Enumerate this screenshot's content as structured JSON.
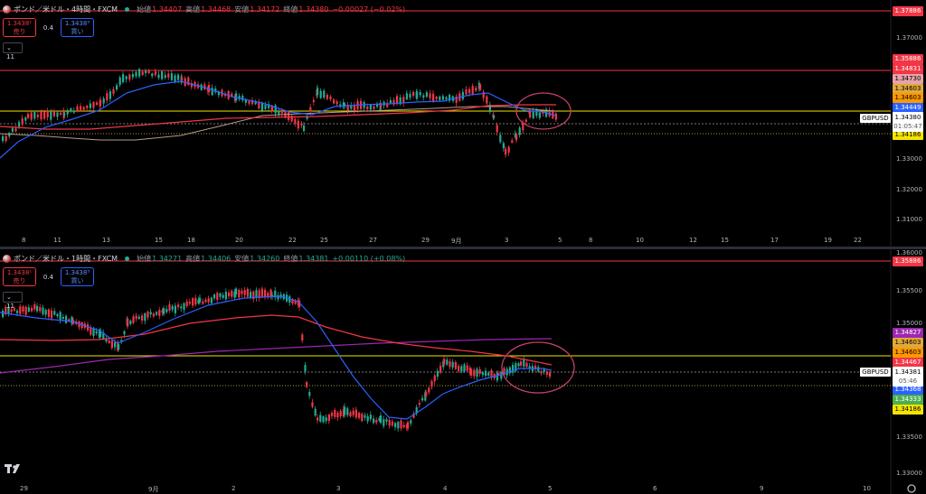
{
  "top_chart": {
    "legend": {
      "title": "ポンド／米ドル・4時間・FXCM",
      "open_label": "始値",
      "open": "1.34407",
      "high_label": "高値",
      "high": "1.34468",
      "low_label": "安値",
      "low": "1.34172",
      "close_label": "終値",
      "close": "1.34380",
      "change": "−0.00027 (−0.02%)"
    },
    "trade": {
      "sell_price": "1.3438¹",
      "sell_label": "売り",
      "spread": "0.4",
      "buy_price": "1.3438⁵",
      "buy_label": "買い"
    },
    "indicator_count": "11",
    "y_ticks": [
      "1.37000",
      "1.33000",
      "1.32000",
      "1.31000"
    ],
    "x_ticks": [
      "8",
      "11",
      "13",
      "15",
      "18",
      "20",
      "22",
      "25",
      "27",
      "29",
      "9月",
      "3",
      "5",
      "8",
      "10",
      "12",
      "15",
      "17",
      "19",
      "22"
    ],
    "price_tags": [
      {
        "value": "1.37886",
        "color": "#f23645"
      },
      {
        "value": "1.35886",
        "color": "#f23645"
      },
      {
        "value": "1.34831",
        "color": "#f23645"
      },
      {
        "value": "1.34730",
        "color": "#e8a3a8"
      },
      {
        "value": "1.34603",
        "color": "#e0a93a"
      },
      {
        "value": "1.34603",
        "color": "#ff9800"
      },
      {
        "value": "1.34449",
        "color": "#2962ff"
      },
      {
        "value": "1.34186",
        "color": "#f5e400"
      }
    ],
    "symbol": "GBPUSD",
    "last_price": "1.34380",
    "countdown": "01:05:47"
  },
  "bottom_chart": {
    "legend": {
      "title": "ポンド／米ドル・1時間・FXCM",
      "open_label": "始値",
      "open": "1.34271",
      "high_label": "高値",
      "high": "1.34406",
      "low_label": "安値",
      "low": "1.34260",
      "close_label": "終値",
      "close": "1.34381",
      "change": "+0.00110 (+0.08%)"
    },
    "trade": {
      "sell_price": "1.3438¹",
      "sell_label": "売り",
      "spread": "0.4",
      "buy_price": "1.3438⁵",
      "buy_label": "買い"
    },
    "indicator_count": "11",
    "y_ticks": [
      "1.36000",
      "1.35500",
      "1.35000",
      "1.33500",
      "1.33000"
    ],
    "x_ticks": [
      "29",
      "9月",
      "2",
      "3",
      "4",
      "5",
      "6",
      "9",
      "10"
    ],
    "price_tags": [
      {
        "value": "1.35886",
        "color": "#f23645"
      },
      {
        "value": "1.34827",
        "color": "#9c27b0"
      },
      {
        "value": "1.34603",
        "color": "#e0a93a"
      },
      {
        "value": "1.34603",
        "color": "#ff9800"
      },
      {
        "value": "1.34467",
        "color": "#f23645"
      },
      {
        "value": "1.34368",
        "color": "#2962ff"
      },
      {
        "value": "1.34333",
        "color": "#4caf50"
      },
      {
        "value": "1.34186",
        "color": "#f5e400"
      }
    ],
    "symbol": "GBPUSD",
    "last_price": "1.34381",
    "countdown": "05:46"
  },
  "colors": {
    "up": "#22ab94",
    "down": "#f23645",
    "ma_fast": "#2962ff",
    "ma_slow": "#f23645",
    "ma_long": "#9c27b0",
    "ma_gray": "#b59a8c",
    "annotation": "#c2436a"
  },
  "icons": [
    "symbol-icon",
    "tradingview-logo-icon",
    "settings-gear-icon",
    "chevron-down-icon"
  ]
}
